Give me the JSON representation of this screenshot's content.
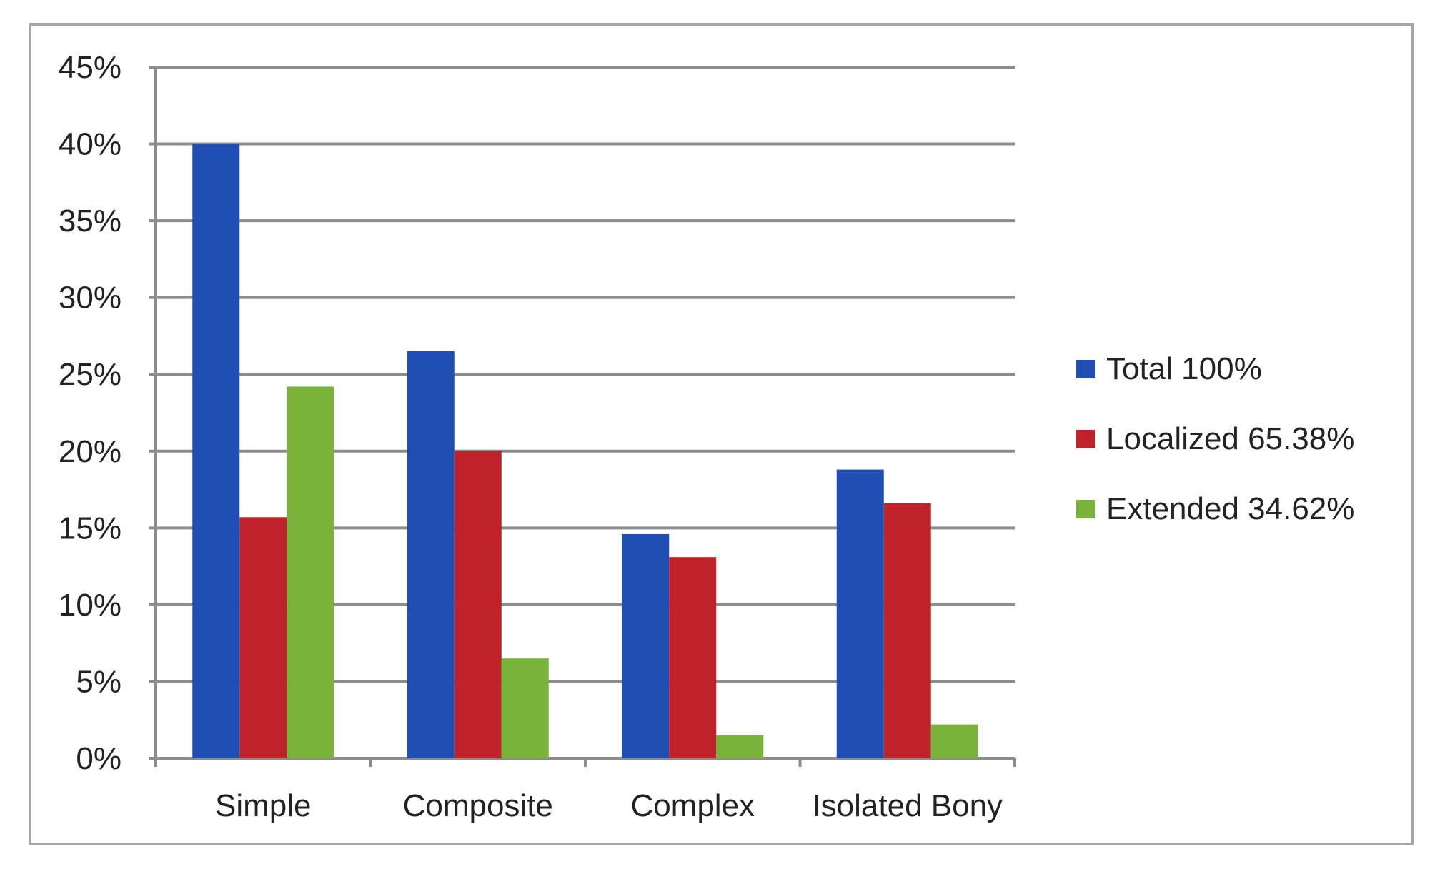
{
  "chart_data": {
    "type": "bar",
    "categories": [
      "Simple",
      "Composite",
      "Complex",
      "Isolated Bony"
    ],
    "series": [
      {
        "name": "Total 100%",
        "color": "#1f4fb3",
        "values": [
          40,
          26.5,
          14.6,
          18.8
        ]
      },
      {
        "name": "Localized 65.38%",
        "color": "#c0222a",
        "values": [
          15.7,
          20,
          13.1,
          16.6
        ]
      },
      {
        "name": "Extended 34.62%",
        "color": "#79b33a",
        "values": [
          24.2,
          6.5,
          1.5,
          2.2
        ]
      }
    ],
    "yticks": [
      "0%",
      "5%",
      "10%",
      "15%",
      "20%",
      "25%",
      "30%",
      "35%",
      "40%",
      "45%"
    ],
    "ylim": [
      0,
      45
    ],
    "ystep": 5,
    "grid": true,
    "legend_position": "right",
    "title": "",
    "xlabel": "",
    "ylabel": ""
  }
}
